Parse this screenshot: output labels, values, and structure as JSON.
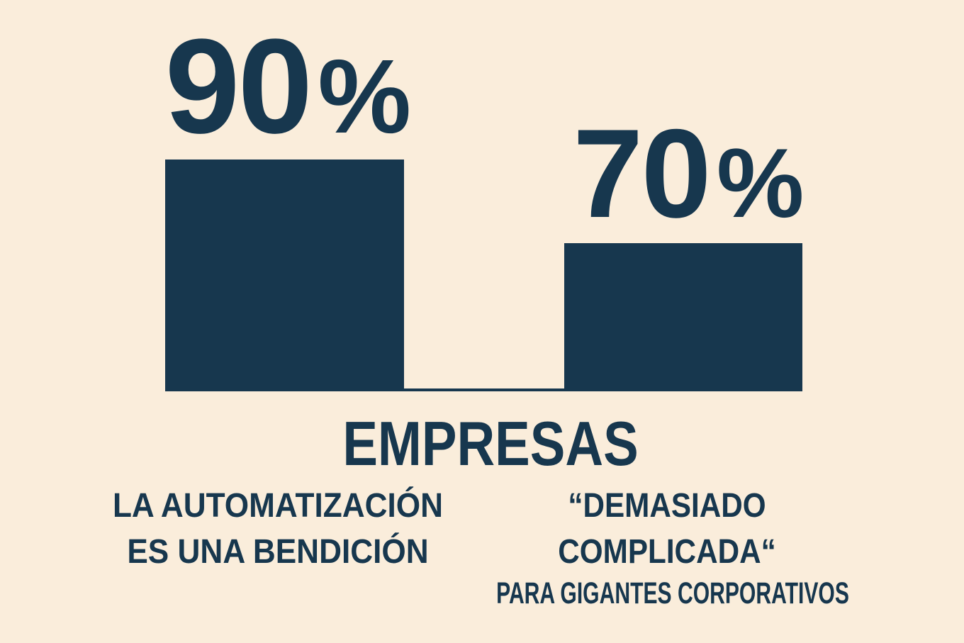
{
  "colors": {
    "ink": "#17374E",
    "background": "#FAEDDB"
  },
  "stats": {
    "left": {
      "value": "90",
      "unit": "%"
    },
    "right": {
      "value": "70",
      "unit": "%"
    }
  },
  "axis": {
    "title": "EMPRESAS"
  },
  "labels": {
    "left": {
      "lines": [
        "LA AUTOMATIZACIÓN",
        "ES UNA BENDICIÓN"
      ]
    },
    "right": {
      "lines": [
        "“DEMASIADO",
        "COMPLICADA“"
      ],
      "subline": "PARA GIGANTES CORPORATIVOS"
    }
  },
  "chart_data": {
    "type": "bar",
    "title": "EMPRESAS",
    "categories": [
      "LA AUTOMATIZACIÓN ES UNA BENDICIÓN",
      "“DEMASIADO COMPLICADA“ PARA GIGANTES CORPORATIVOS"
    ],
    "values": [
      90,
      70
    ],
    "value_labels": [
      "90%",
      "70%"
    ],
    "unit": "%",
    "xlabel": "EMPRESAS",
    "ylabel": "",
    "ylim": [
      0,
      100
    ],
    "grid": false,
    "legend": false,
    "orientation": "vertical",
    "bar_color": "#17374E",
    "background_color": "#FAEDDB"
  }
}
